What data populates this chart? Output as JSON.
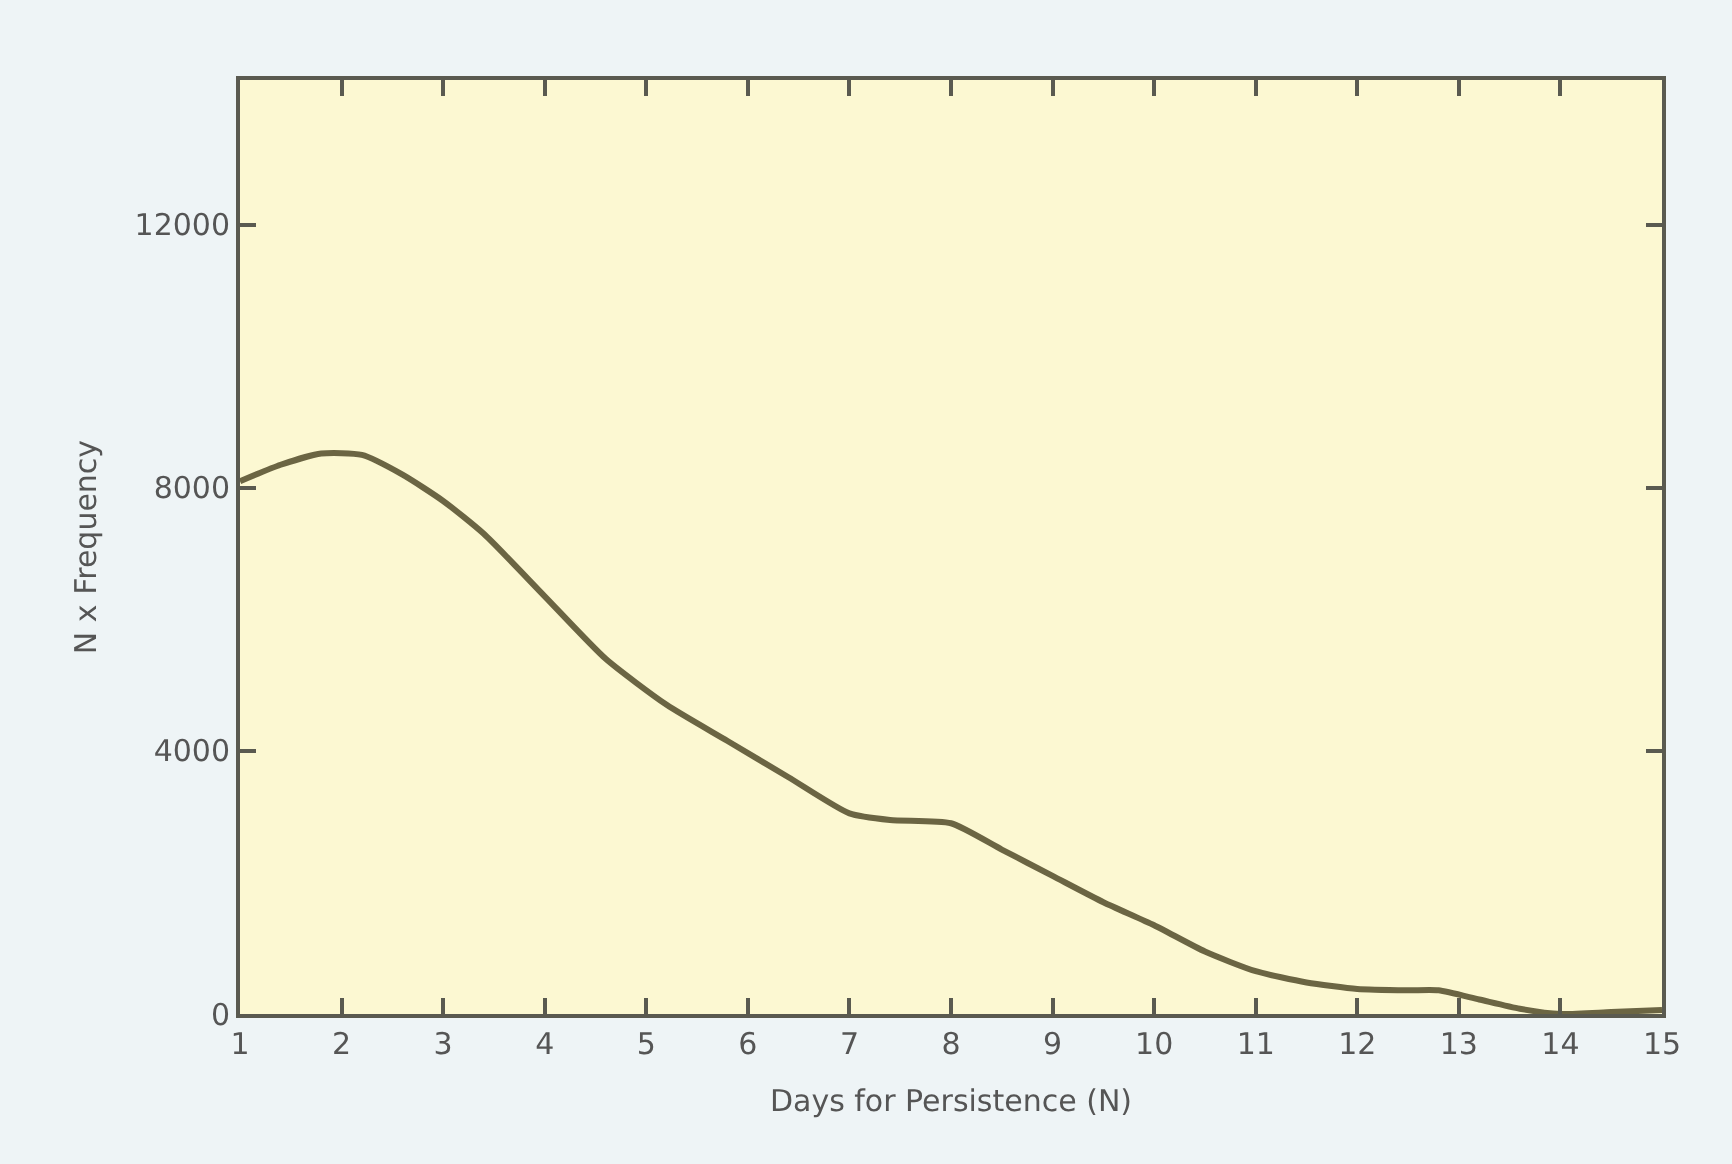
{
  "chart_data": {
    "type": "line",
    "xlabel": "Days for Persistence (N)",
    "ylabel": "N x Frequency",
    "x": [
      1.0,
      1.4,
      1.8,
      2.2,
      2.6,
      3.0,
      3.4,
      4.0,
      4.6,
      5.2,
      5.8,
      6.4,
      7.0,
      7.4,
      8.0,
      8.5,
      9.0,
      9.5,
      10.0,
      10.5,
      11.0,
      11.5,
      12.0,
      12.5,
      12.8,
      13.2,
      13.6,
      14.0,
      14.5,
      15.0
    ],
    "series": [
      {
        "color": "#6b6543",
        "values": [
          8100,
          8350,
          8520,
          8500,
          8200,
          7800,
          7300,
          6350,
          5400,
          4700,
          4150,
          3600,
          3050,
          2950,
          2900,
          2500,
          2100,
          1700,
          1350,
          950,
          650,
          480,
          380,
          360,
          360,
          220,
          80,
          0,
          30,
          60
        ]
      }
    ],
    "xlim": [
      1,
      15
    ],
    "xticks": [
      1,
      2,
      3,
      4,
      5,
      6,
      7,
      8,
      9,
      10,
      11,
      12,
      13,
      14,
      15
    ],
    "ylim": [
      0,
      14200
    ],
    "yticks": [
      0,
      4000,
      8000,
      12000
    ],
    "grid": false,
    "marker": "none",
    "line_style": "solid"
  }
}
